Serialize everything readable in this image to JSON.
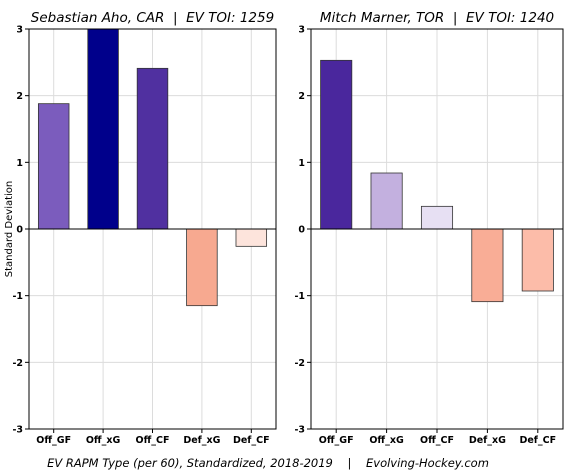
{
  "chart_data": [
    {
      "type": "bar",
      "title": "Sebastian Aho, CAR  |  EV TOI: 1259",
      "ylabel": "Standard Deviation",
      "xlabel": "",
      "categories": [
        "Off_GF",
        "Off_xG",
        "Off_CF",
        "Def_xG",
        "Def_CF"
      ],
      "values": [
        1.88,
        3.0,
        2.41,
        -1.15,
        -0.26
      ],
      "bar_colors": [
        "#7b5cbd",
        "#00008b",
        "#5030a0",
        "#f7a990",
        "#fde4dc"
      ],
      "yticks": [
        -3,
        -2,
        -1,
        0,
        1,
        2,
        3
      ],
      "ylim": [
        -3,
        3
      ],
      "grid": true
    },
    {
      "type": "bar",
      "title": "Mitch Marner, TOR  |  EV TOI: 1240",
      "ylabel": "",
      "xlabel": "",
      "categories": [
        "Off_GF",
        "Off_xG",
        "Off_CF",
        "Def_xG",
        "Def_CF"
      ],
      "values": [
        2.53,
        0.84,
        0.34,
        -1.09,
        -0.93
      ],
      "bar_colors": [
        "#4a279d",
        "#c3b0df",
        "#e7e0f3",
        "#f9ad96",
        "#fcbca9"
      ],
      "yticks": [
        -3,
        -2,
        -1,
        0,
        1,
        2,
        3
      ],
      "ylim": [
        -3,
        3
      ],
      "grid": true
    }
  ],
  "footer": "EV RAPM Type (per 60), Standardized, 2018-2019    |    Evolving-Hockey.com"
}
